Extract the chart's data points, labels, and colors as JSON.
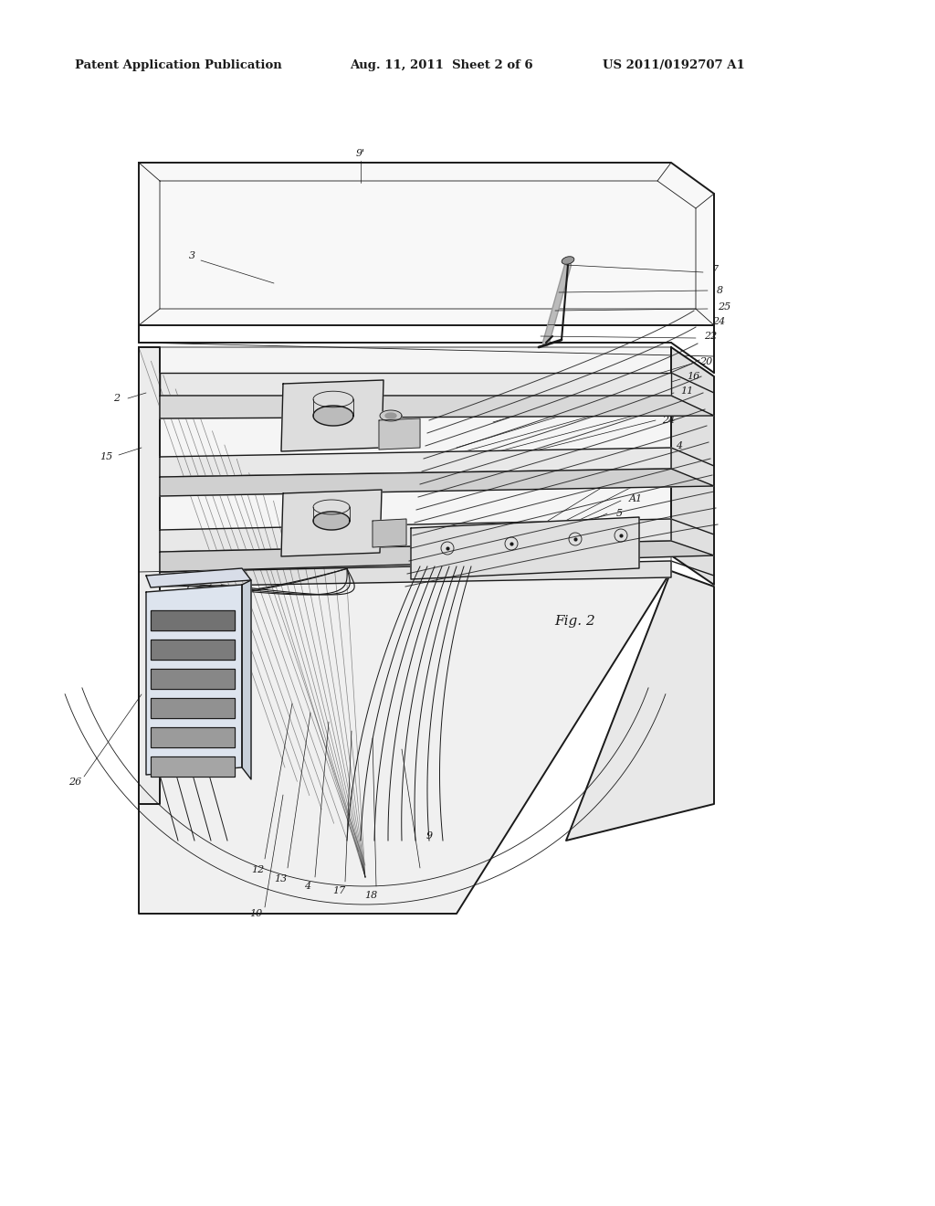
{
  "header_left": "Patent Application Publication",
  "header_mid": "Aug. 11, 2011  Sheet 2 of 6",
  "header_right": "US 2011/0192707 A1",
  "fig_label": "Fig. 2",
  "background_color": "#ffffff",
  "line_color": "#1a1a1a",
  "text_color": "#1a1a1a",
  "lw_heavy": 1.4,
  "lw_medium": 1.0,
  "lw_thin": 0.6,
  "lw_leader": 0.5
}
